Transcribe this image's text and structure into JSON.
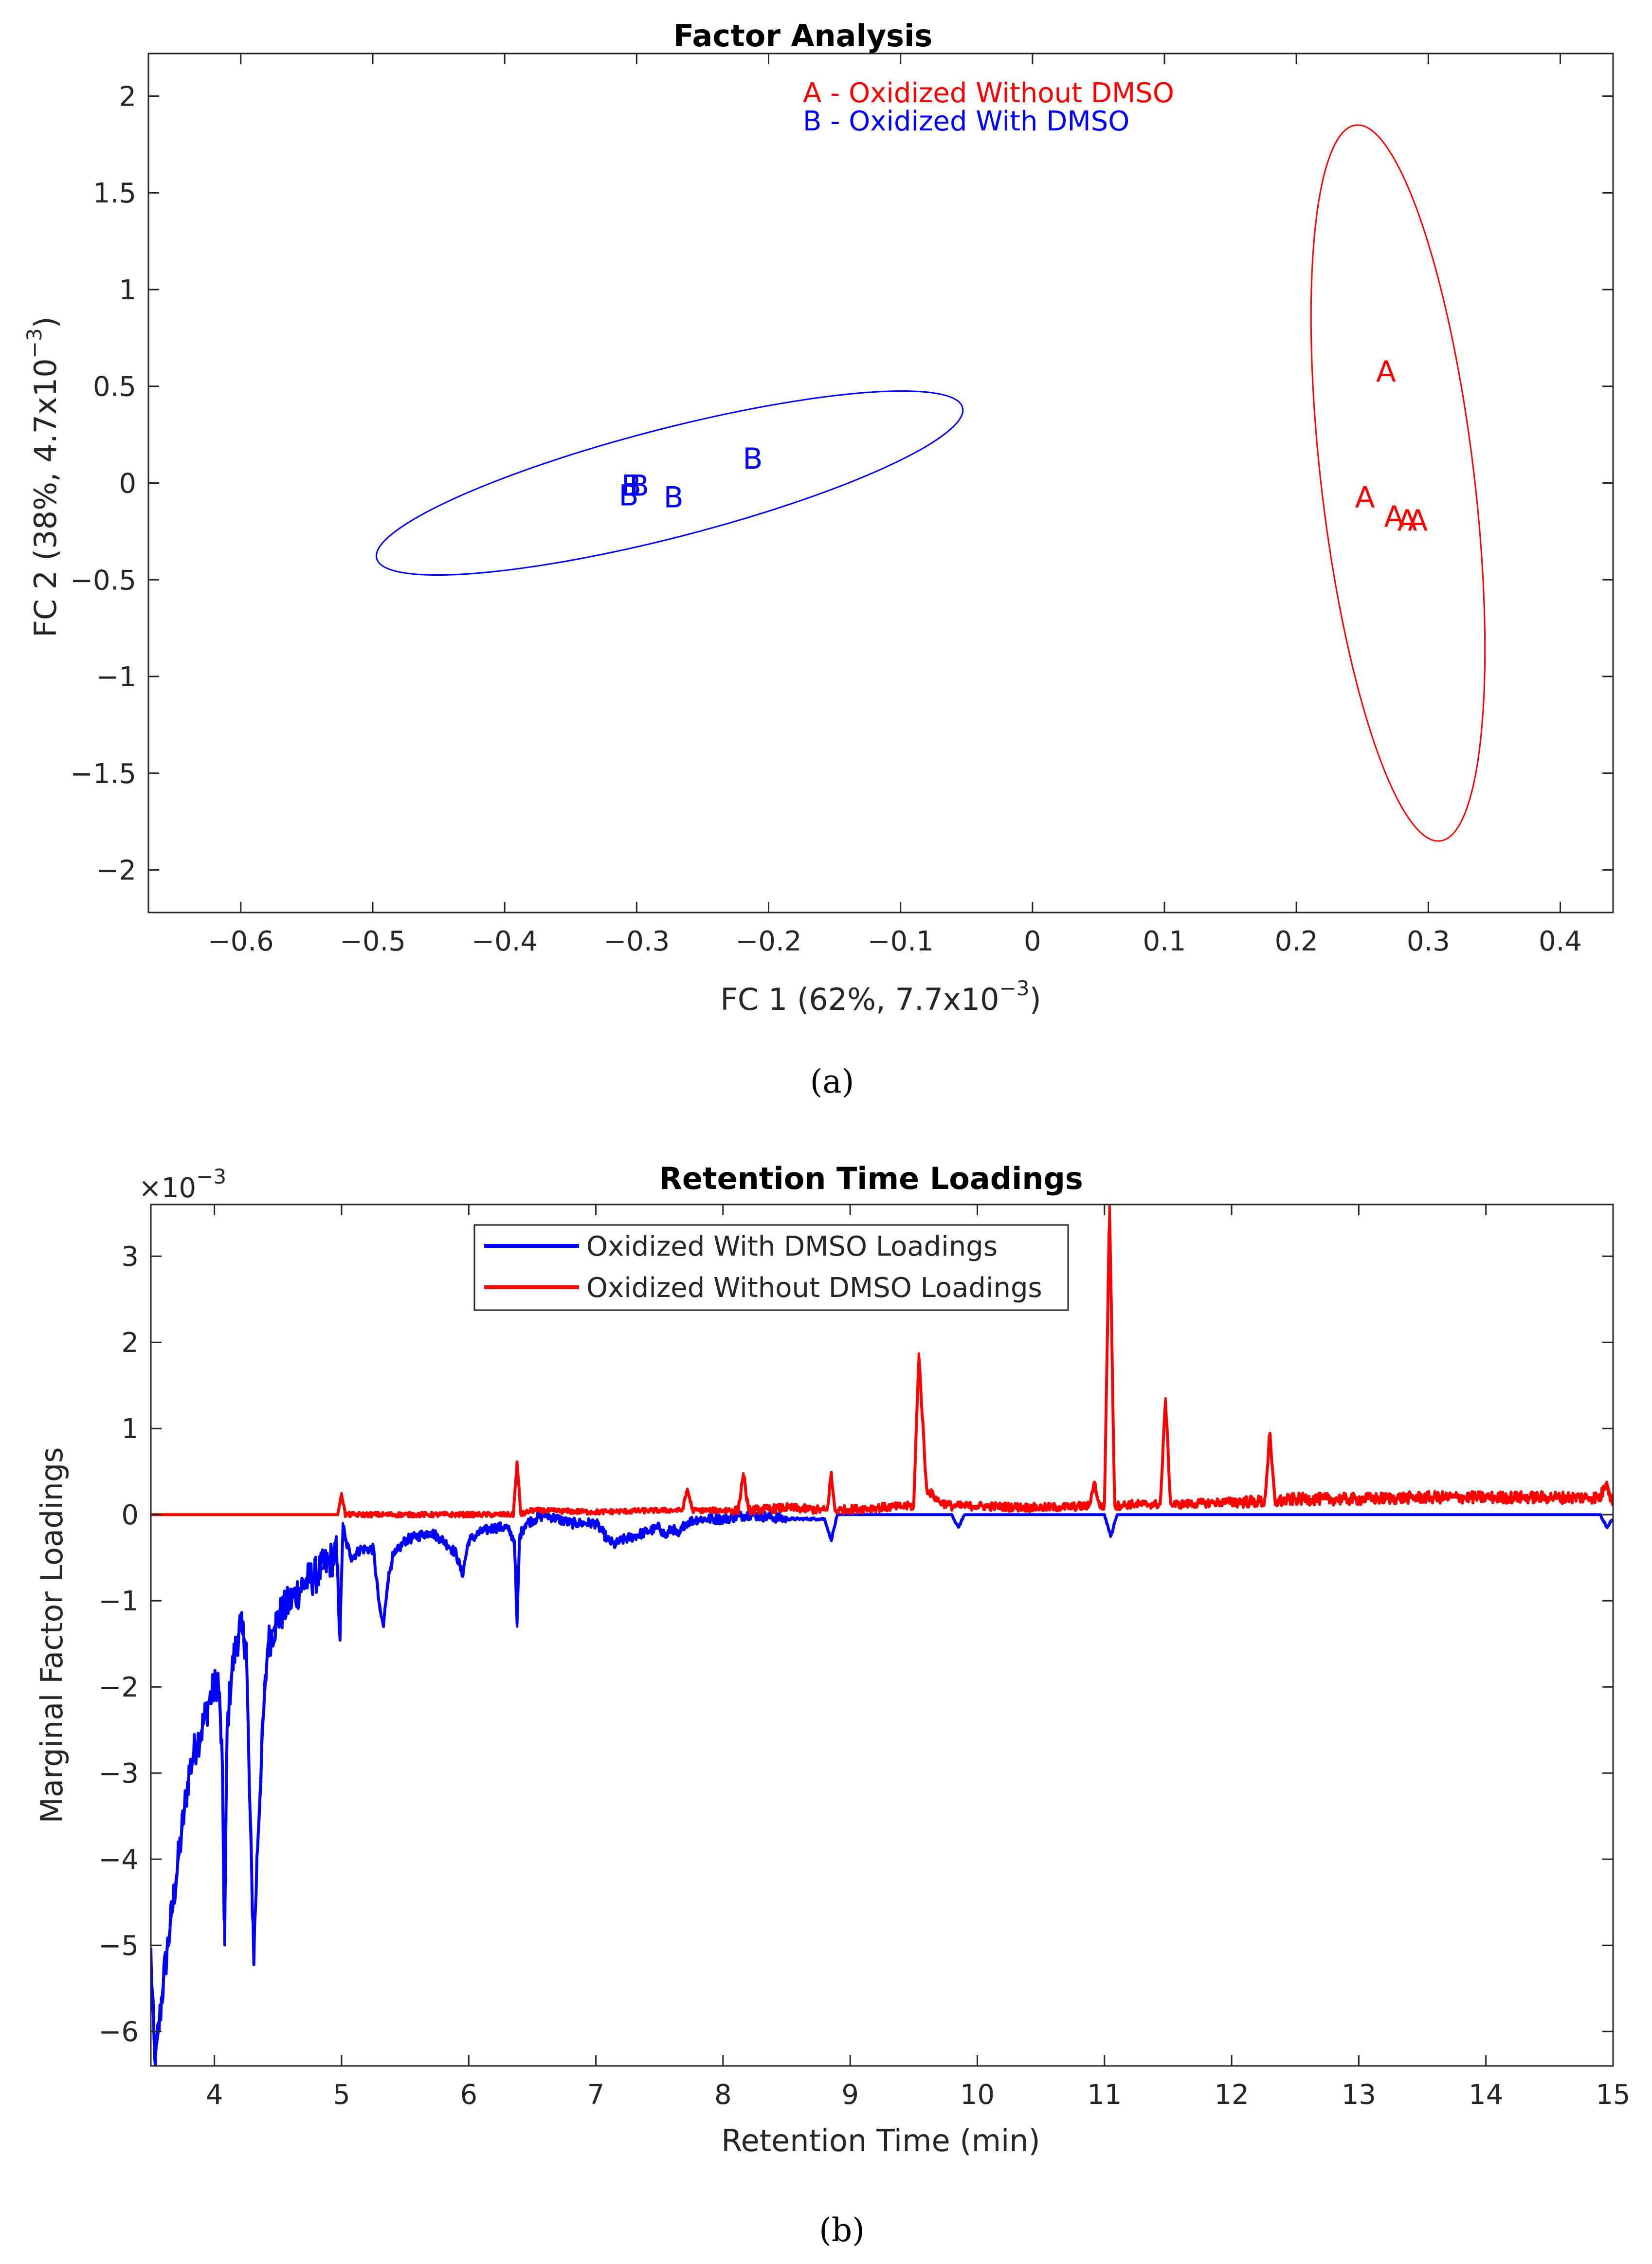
{
  "colors": {
    "red": "#ff0000",
    "blue": "#0000ff",
    "dark_red": "#e00000",
    "dark_blue": "#1515e6",
    "axis": "#262626"
  },
  "chart_data": [
    {
      "type": "scatter",
      "title": "Factor Analysis",
      "sublabel": "(a)",
      "xlabel_main": "FC 1 (62%, 7.7x10",
      "xlabel_exp": "−3",
      "xlabel_close": ")",
      "ylabel_main": "FC 2 (38%, 4.7x10",
      "ylabel_exp": "−3",
      "ylabel_close": ")",
      "xlim": [
        -0.67,
        0.44
      ],
      "ylim": [
        -2.22,
        2.22
      ],
      "xticks": [
        -0.6,
        -0.5,
        -0.4,
        -0.3,
        -0.2,
        -0.1,
        0,
        0.1,
        0.2,
        0.3,
        0.4
      ],
      "xtick_labels": [
        "−0.6",
        "−0.5",
        "−0.4",
        "−0.3",
        "−0.2",
        "−0.1",
        "0",
        "0.1",
        "0.2",
        "0.3",
        "0.4"
      ],
      "yticks": [
        2,
        1.5,
        1,
        0.5,
        0,
        -0.5,
        -1,
        -1.5,
        -2
      ],
      "ytick_labels": [
        "2",
        "1.5",
        "1",
        "0.5",
        "0",
        "−0.5",
        "−1",
        "−1.5",
        "−2"
      ],
      "legend_text": [
        "A - Oxidized Without DMSO",
        "B - Oxidized With DMSO"
      ],
      "series": [
        {
          "name": "Oxidized Without DMSO",
          "marker": "A",
          "color": "#ff0000",
          "points": [
            [
              0.268,
              0.58
            ],
            [
              0.252,
              -0.07
            ],
            [
              0.274,
              -0.17
            ],
            [
              0.284,
              -0.19
            ],
            [
              0.292,
              -0.19
            ]
          ],
          "ellipse": {
            "center": [
              0.277,
              0.0
            ],
            "tip_top": [
              0.245,
              1.85
            ],
            "tip_bottom": [
              0.309,
              -1.85
            ],
            "minor_half_width": 0.058
          }
        },
        {
          "name": "Oxidized With DMSO",
          "marker": "B",
          "color": "#0000ff",
          "points": [
            [
              -0.306,
              -0.06
            ],
            [
              -0.304,
              -0.01
            ],
            [
              -0.298,
              -0.01
            ],
            [
              -0.272,
              -0.07
            ],
            [
              -0.212,
              0.13
            ]
          ],
          "ellipse": {
            "center": [
              -0.275,
              0.0
            ],
            "tip_left": [
              -0.497,
              -0.39
            ],
            "tip_right": [
              -0.053,
              0.39
            ],
            "minor_half_height": 0.29
          }
        }
      ]
    },
    {
      "type": "line",
      "title": "Retention Time Loadings",
      "sublabel": "(b)",
      "xlabel": "Retention Time (min)",
      "ylabel": "Marginal Factor Loadings",
      "exponent_prefix": "×10",
      "exponent": "−3",
      "xlim": [
        3.5,
        15
      ],
      "ylim": [
        -6.4,
        3.6
      ],
      "xticks": [
        4,
        5,
        6,
        7,
        8,
        9,
        10,
        11,
        12,
        13,
        14,
        15
      ],
      "xtick_labels": [
        "4",
        "5",
        "6",
        "7",
        "8",
        "9",
        "10",
        "11",
        "12",
        "13",
        "14",
        "15"
      ],
      "yticks": [
        3,
        2,
        1,
        0,
        -1,
        -2,
        -3,
        -4,
        -5,
        -6
      ],
      "ytick_labels": [
        "3",
        "2",
        "1",
        "0",
        "−1",
        "−2",
        "−3",
        "−4",
        "−5",
        "−6"
      ],
      "legend": [
        "Oxidized With DMSO Loadings",
        "Oxidized Without DMSO Loadings"
      ],
      "series": [
        {
          "name": "Oxidized With DMSO Loadings",
          "color": "#0000ff",
          "x": [
            3.5,
            3.53,
            3.56,
            3.6,
            3.65,
            3.7,
            3.75,
            3.8,
            3.85,
            3.9,
            3.95,
            4.0,
            4.03,
            4.06,
            4.08,
            4.1,
            4.13,
            4.16,
            4.2,
            4.25,
            4.28,
            4.31,
            4.34,
            4.38,
            4.42,
            4.5,
            4.6,
            4.7,
            4.8,
            4.9,
            4.96,
            4.99,
            5.01,
            5.03,
            5.08,
            5.15,
            5.25,
            5.3,
            5.33,
            5.36,
            5.4,
            5.5,
            5.6,
            5.7,
            5.8,
            5.9,
            5.95,
            6.0,
            6.1,
            6.2,
            6.3,
            6.36,
            6.38,
            6.4,
            6.45,
            6.6,
            6.8,
            7.0,
            7.1,
            7.15,
            7.2,
            7.3,
            7.4,
            7.5,
            7.55,
            7.6,
            7.65,
            7.7,
            7.8,
            8.0,
            8.2,
            8.5,
            8.8,
            8.85,
            8.9,
            9.0,
            9.5,
            9.8,
            9.85,
            9.9,
            10.0,
            10.5,
            11.0,
            11.05,
            11.1,
            11.5,
            12.0,
            12.5,
            13.0,
            13.5,
            14.0,
            14.5,
            14.9,
            14.95,
            15.0
          ],
          "y": [
            -5.1,
            -6.35,
            -6.0,
            -5.4,
            -4.8,
            -4.2,
            -3.6,
            -3.0,
            -2.7,
            -2.5,
            -2.2,
            -2.0,
            -1.9,
            -2.8,
            -5.0,
            -2.5,
            -1.9,
            -1.6,
            -1.3,
            -1.5,
            -3.5,
            -5.1,
            -3.8,
            -2.5,
            -1.5,
            -1.2,
            -1.0,
            -0.8,
            -0.7,
            -0.55,
            -0.45,
            -1.4,
            -0.1,
            -0.3,
            -0.5,
            -0.4,
            -0.4,
            -1.1,
            -1.3,
            -0.8,
            -0.5,
            -0.3,
            -0.25,
            -0.2,
            -0.3,
            -0.45,
            -0.7,
            -0.3,
            -0.2,
            -0.15,
            -0.15,
            -0.3,
            -1.3,
            -0.25,
            -0.1,
            0.0,
            -0.1,
            -0.1,
            -0.3,
            -0.35,
            -0.3,
            -0.25,
            -0.2,
            -0.15,
            -0.25,
            -0.15,
            -0.25,
            -0.1,
            -0.05,
            -0.05,
            0.0,
            -0.05,
            -0.05,
            -0.3,
            0.0,
            0.0,
            0.0,
            0.0,
            -0.15,
            0.0,
            0.0,
            0.0,
            0.0,
            -0.25,
            0.0,
            0.0,
            0.0,
            0.0,
            0.0,
            0.0,
            0.0,
            0.0,
            0.0,
            -0.15,
            -0.05
          ]
        },
        {
          "name": "Oxidized Without DMSO Loadings",
          "color": "#ff0000",
          "x": [
            3.5,
            4.97,
            5.0,
            5.03,
            6.35,
            6.38,
            6.41,
            6.5,
            7.0,
            7.5,
            7.68,
            7.72,
            7.76,
            8.0,
            8.12,
            8.16,
            8.2,
            8.5,
            8.82,
            8.85,
            8.88,
            9.2,
            9.5,
            9.54,
            9.6,
            9.7,
            9.8,
            10.0,
            10.5,
            10.88,
            10.92,
            10.96,
            11.0,
            11.04,
            11.08,
            11.2,
            11.44,
            11.48,
            11.52,
            11.6,
            12.0,
            12.26,
            12.3,
            12.34,
            12.5,
            13.0,
            13.5,
            14.0,
            14.5,
            14.9,
            14.95,
            15.0
          ],
          "y": [
            0.0,
            0.0,
            0.25,
            0.0,
            0.0,
            0.6,
            0.0,
            0.05,
            0.03,
            0.05,
            0.05,
            0.3,
            0.05,
            0.05,
            0.05,
            0.48,
            0.05,
            0.08,
            0.05,
            0.48,
            0.05,
            0.08,
            0.1,
            1.87,
            0.3,
            0.15,
            0.1,
            0.1,
            0.08,
            0.1,
            0.38,
            0.1,
            0.1,
            3.6,
            0.1,
            0.12,
            0.12,
            1.35,
            0.12,
            0.12,
            0.15,
            0.15,
            0.92,
            0.15,
            0.18,
            0.18,
            0.2,
            0.2,
            0.2,
            0.2,
            0.38,
            0.1
          ]
        }
      ]
    }
  ]
}
